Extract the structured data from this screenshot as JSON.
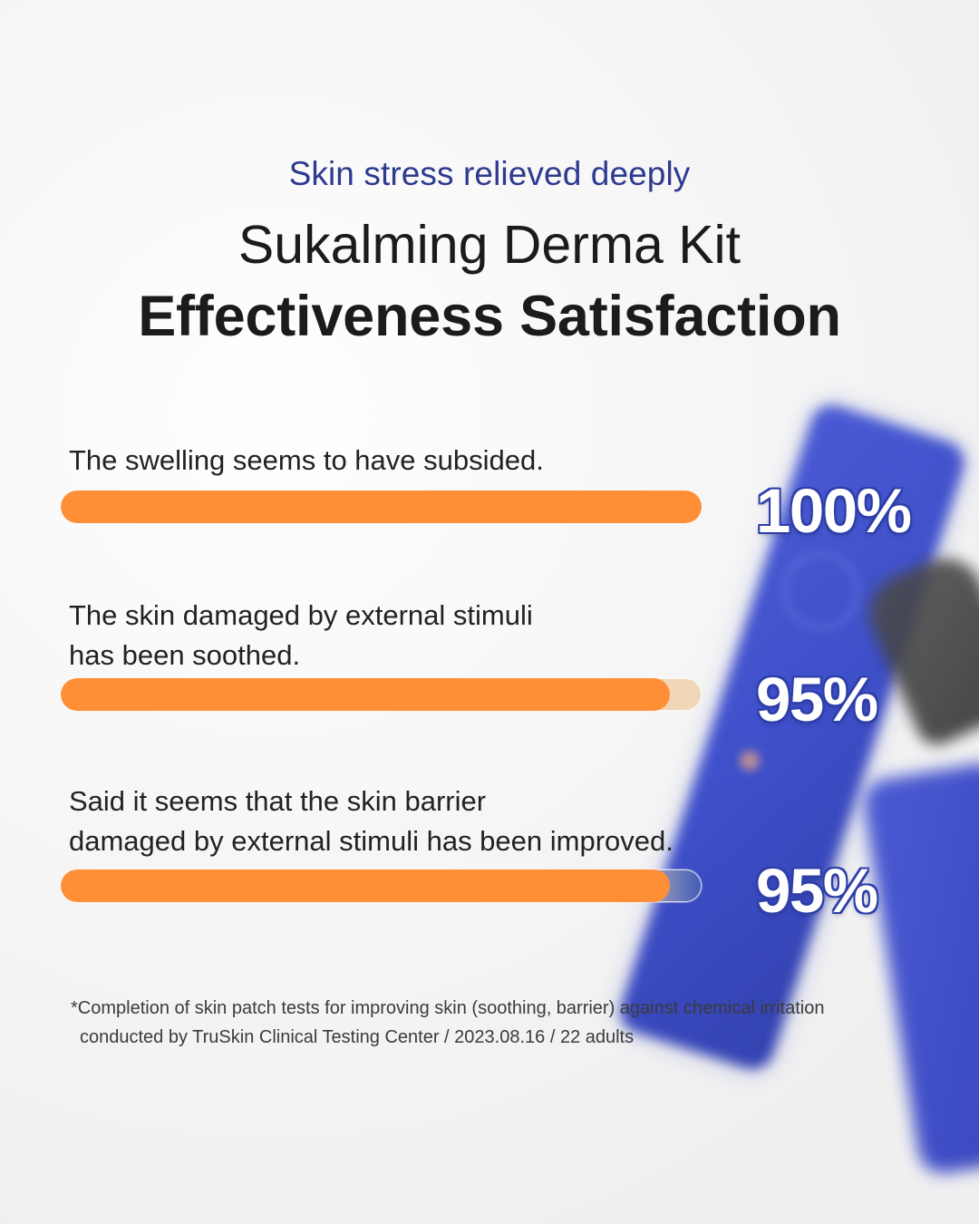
{
  "header": {
    "eyebrow": "Skin stress relieved deeply",
    "title_line_1": "Sukalming Derma Kit",
    "title_line_2": "Effectiveness Satisfaction"
  },
  "chart_data": {
    "type": "bar",
    "orientation": "horizontal",
    "categories": [
      "The swelling seems to have subsided.",
      "The skin damaged by external stimuli\nhas been soothed.",
      "Said it seems that the skin barrier\ndamaged by external stimuli has been improved."
    ],
    "values": [
      100,
      95,
      95
    ],
    "value_labels": [
      "100%",
      "95%",
      "95%"
    ],
    "unit": "%",
    "xlim": [
      0,
      100
    ],
    "colors": {
      "fill": "#ff8f37",
      "track": "#efd7b7",
      "value_text": "#ffffff",
      "value_outline": "#2d3ea8"
    }
  },
  "footnote": {
    "line_1": "*Completion of skin patch tests for improving skin (soothing, barrier) against chemical irritation",
    "line_2": "conducted by TruSkin Clinical Testing Center / 2023.08.16 / 22 adults"
  }
}
